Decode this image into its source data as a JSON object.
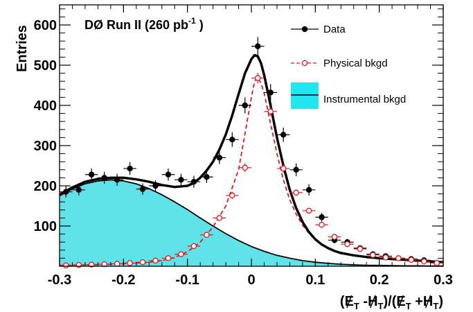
{
  "chart_data": {
    "type": "scatter",
    "annotation": {
      "prefix": "DØ Run II  (260 pb",
      "sup": "-1",
      "suffix": " )"
    },
    "ylabel": "Entries",
    "xlabel": {
      "open": "(",
      "e1": "E",
      "s1": "T",
      "minus": " -",
      "h1": "H",
      "s2": "T",
      "mid": ")/(",
      "e2": "E",
      "s3": "T",
      "plus": " +",
      "h2": "H",
      "s4": "T",
      "close": ")"
    },
    "xlim": [
      -0.3,
      0.3
    ],
    "ylim": [
      0,
      650
    ],
    "xticks": [
      -0.3,
      -0.2,
      -0.1,
      0,
      0.1,
      0.2,
      0.3
    ],
    "xtick_labels": [
      "-0.3",
      "-0.2",
      "-0.1",
      "0",
      "0.1",
      "0.2",
      "0.3"
    ],
    "yticks": [
      100,
      200,
      300,
      400,
      500,
      600
    ],
    "ytick_labels": [
      "100",
      "200",
      "300",
      "400",
      "500",
      "600"
    ],
    "legend": {
      "position": "top-right",
      "entries": [
        {
          "label": "Data",
          "style": "filled-marker",
          "color": "#000000"
        },
        {
          "label": "Physical bkgd",
          "style": "open-marker-dashed",
          "color": "#e8141b"
        },
        {
          "label": "Instrumental bkgd",
          "style": "filled-area",
          "color": "#21e6f0"
        }
      ]
    },
    "colors": {
      "data": "#000000",
      "physical": "#e8141b",
      "instrumental_fill": "#5fe3e8",
      "instrumental_line": "#000000"
    },
    "bin_half_width": 0.01,
    "series": [
      {
        "name": "Data",
        "x": [
          -0.29,
          -0.27,
          -0.25,
          -0.23,
          -0.21,
          -0.19,
          -0.17,
          -0.15,
          -0.13,
          -0.11,
          -0.09,
          -0.07,
          -0.05,
          -0.03,
          -0.01,
          0.01,
          0.03,
          0.05,
          0.07,
          0.09,
          0.11,
          0.13,
          0.15,
          0.17,
          0.19,
          0.21,
          0.23,
          0.25,
          0.27,
          0.29
        ],
        "y": [
          185,
          190,
          228,
          220,
          215,
          243,
          192,
          200,
          228,
          215,
          210,
          222,
          270,
          315,
          400,
          547,
          432,
          327,
          240,
          190,
          122,
          65,
          60,
          45,
          30,
          25,
          20,
          18,
          15,
          8
        ],
        "yerr": [
          14,
          14,
          15,
          15,
          15,
          16,
          14,
          14,
          15,
          15,
          15,
          15,
          16,
          18,
          20,
          23,
          21,
          18,
          16,
          14,
          11,
          8,
          8,
          7,
          6,
          5,
          5,
          4,
          4,
          3
        ]
      },
      {
        "name": "Physical bkgd",
        "x": [
          -0.29,
          -0.27,
          -0.25,
          -0.23,
          -0.21,
          -0.19,
          -0.17,
          -0.15,
          -0.13,
          -0.11,
          -0.09,
          -0.07,
          -0.05,
          -0.03,
          -0.01,
          0.01,
          0.03,
          0.05,
          0.07,
          0.09,
          0.11,
          0.13,
          0.15,
          0.17,
          0.19,
          0.21,
          0.23,
          0.25,
          0.27,
          0.29
        ],
        "y": [
          2,
          3,
          4,
          5,
          6,
          8,
          10,
          14,
          20,
          30,
          50,
          78,
          120,
          176,
          245,
          468,
          385,
          243,
          183,
          138,
          103,
          73,
          55,
          43,
          28,
          22,
          20,
          16,
          12,
          8
        ],
        "yerr": [
          1,
          1,
          1,
          1,
          1,
          2,
          2,
          2,
          3,
          3,
          4,
          5,
          7,
          9,
          11,
          13,
          12,
          10,
          8,
          7,
          6,
          5,
          4,
          3,
          3,
          3,
          2,
          2,
          2,
          2
        ]
      }
    ],
    "instrumental_curve": {
      "x": [
        -0.3,
        -0.28,
        -0.26,
        -0.24,
        -0.22,
        -0.2,
        -0.18,
        -0.16,
        -0.14,
        -0.12,
        -0.1,
        -0.08,
        -0.06,
        -0.04,
        -0.02,
        0.0,
        0.02,
        0.04,
        0.06,
        0.08,
        0.1,
        0.12,
        0.14,
        0.16,
        0.18,
        0.2,
        0.22,
        0.24,
        0.26,
        0.28,
        0.3
      ],
      "y": [
        175,
        192,
        205,
        212,
        215,
        212,
        205,
        193,
        178,
        160,
        141,
        120,
        100,
        81,
        64,
        49,
        37,
        27,
        20,
        14,
        10,
        7,
        5,
        3.5,
        2.5,
        2,
        1.5,
        1,
        1,
        0.5,
        0.5
      ]
    },
    "total_curve": {
      "x": [
        -0.3,
        -0.28,
        -0.26,
        -0.24,
        -0.22,
        -0.2,
        -0.18,
        -0.16,
        -0.14,
        -0.12,
        -0.1,
        -0.09,
        -0.08,
        -0.07,
        -0.06,
        -0.05,
        -0.04,
        -0.03,
        -0.02,
        -0.01,
        0.0,
        0.005,
        0.01,
        0.015,
        0.02,
        0.03,
        0.04,
        0.05,
        0.06,
        0.07,
        0.08,
        0.09,
        0.1,
        0.11,
        0.12,
        0.13,
        0.14,
        0.16,
        0.18,
        0.2,
        0.22,
        0.24,
        0.26,
        0.28,
        0.3
      ],
      "y": [
        178,
        196,
        210,
        217,
        220,
        220,
        216,
        210,
        202,
        197,
        200,
        207,
        220,
        238,
        260,
        290,
        328,
        375,
        428,
        480,
        515,
        525,
        522,
        505,
        475,
        400,
        320,
        250,
        190,
        145,
        110,
        85,
        67,
        54,
        45,
        38,
        33,
        27,
        23,
        20,
        18,
        16,
        14,
        12,
        10
      ]
    },
    "physical_curve": {
      "x": [
        -0.3,
        -0.28,
        -0.26,
        -0.24,
        -0.22,
        -0.2,
        -0.18,
        -0.16,
        -0.14,
        -0.12,
        -0.1,
        -0.08,
        -0.06,
        -0.04,
        -0.02,
        -0.01,
        0.0,
        0.005,
        0.01,
        0.015,
        0.02,
        0.03,
        0.04,
        0.05,
        0.06,
        0.07,
        0.08,
        0.09,
        0.1,
        0.11,
        0.12,
        0.13,
        0.14,
        0.16,
        0.18,
        0.2,
        0.22,
        0.24,
        0.26,
        0.28,
        0.3
      ],
      "y": [
        2,
        3,
        3,
        4,
        5,
        6,
        8,
        10,
        14,
        22,
        36,
        60,
        98,
        150,
        240,
        330,
        420,
        460,
        470,
        455,
        430,
        355,
        280,
        215,
        165,
        130,
        102,
        82,
        66,
        54,
        45,
        38,
        33,
        27,
        23,
        20,
        18,
        16,
        14,
        12,
        9
      ]
    }
  }
}
